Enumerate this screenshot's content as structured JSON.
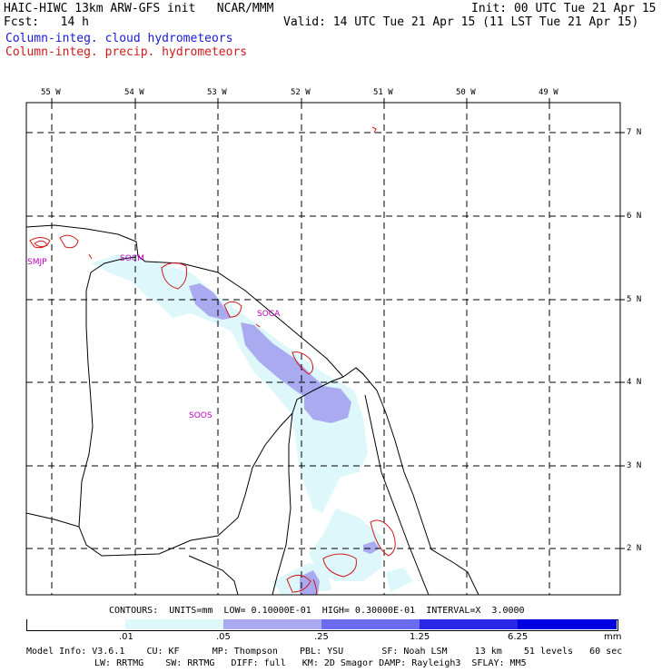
{
  "header": {
    "title_left": "HAIC-HIWC 13km ARW-GFS init   NCAR/MMM",
    "fcst": "Fcst:   14 h",
    "init": "Init: 00 UTC Tue 21 Apr 15",
    "valid": "Valid: 14 UTC Tue 21 Apr 15 (11 LST Tue 21 Apr 15)",
    "legend_cloud": "Column-integ. cloud hydrometeors",
    "legend_precip": "Column-integ. precip. hydrometeors"
  },
  "axes": {
    "longitudes": [
      "55 W",
      "54 W",
      "53 W",
      "52 W",
      "51 W",
      "50 W",
      "49 W"
    ],
    "latitudes": [
      "7 N",
      "6 N",
      "5 N",
      "4 N",
      "3 N",
      "2 N"
    ]
  },
  "stations": [
    "SMJP",
    "SOCM",
    "SOCA",
    "SOOS"
  ],
  "contours_line": "CONTOURS:  UNITS=mm  LOW= 0.10000E-01  HIGH= 0.30000E-01  INTERVAL=X  3.0000",
  "colorbar": {
    "labels": [
      ".01",
      ".05",
      ".25",
      "1.25",
      "6.25",
      "mm"
    ],
    "colors": [
      "#ffffff",
      "#ddf7fb",
      "#aaaaf0",
      "#6b6bef",
      "#2828e6",
      "#0000e0"
    ]
  },
  "model_info": {
    "line1": "Model Info: V3.6.1    CU: KF      MP: Thompson    PBL: YSU       SF: Noah LSM     13 km    51 levels   60 sec",
    "line2": "LW: RRTMG    SW: RRTMG   DIFF: full   KM: 2D Smagor DAMP: Rayleigh3  SFLAY: MM5"
  }
}
